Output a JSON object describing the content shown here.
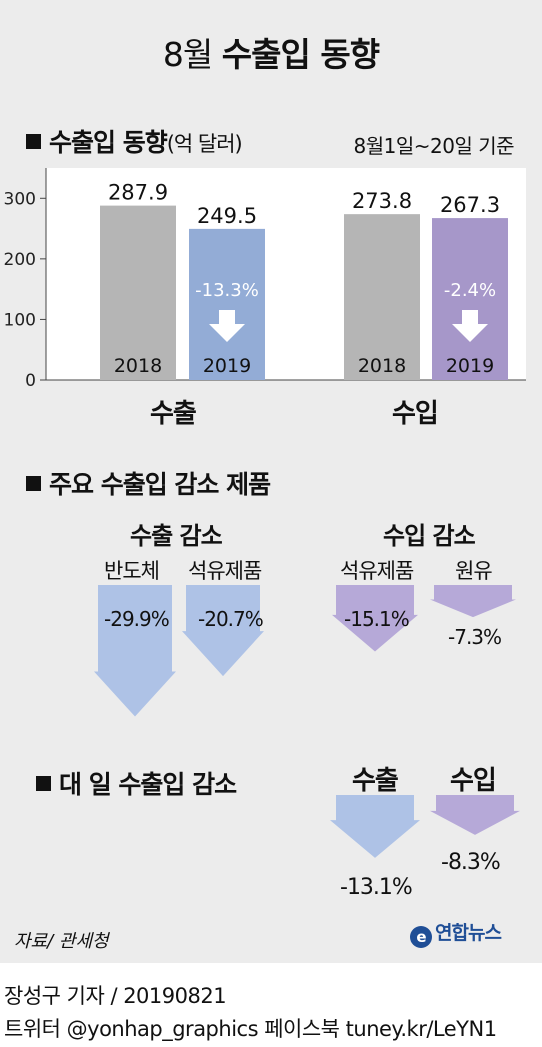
{
  "title": {
    "light": "8월",
    "bold": "수출입 동향"
  },
  "section1": {
    "heading": "수출입 동향",
    "unit": "(억 달러)",
    "period": "8월1일~20일 기준"
  },
  "section2": {
    "heading": "주요 수출입 감소 제품"
  },
  "section3": {
    "heading": "대 일 수출입 감소"
  },
  "chart_data": [
    {
      "type": "bar",
      "title": "수출입 동향",
      "ylabel": "억 달러",
      "groups": [
        "수출",
        "수입"
      ],
      "categories": [
        "2018",
        "2019"
      ],
      "series": [
        {
          "group": "수출",
          "values": [
            287.9,
            249.5
          ],
          "value_labels": [
            "287.9",
            "249.5"
          ],
          "change": "-13.3%"
        },
        {
          "group": "수입",
          "values": [
            273.8,
            267.3
          ],
          "value_labels": [
            "273.8",
            "267.3"
          ],
          "change": "-2.4%"
        }
      ],
      "yticks": [
        "0",
        "100",
        "200",
        "300"
      ],
      "ylim": [
        0,
        350
      ],
      "colors": {
        "2018": "#b5b5b5",
        "export_2019": "#93acd6",
        "import_2019": "#a697c9"
      }
    },
    {
      "type": "bar",
      "title": "주요 수출입 감소 제품",
      "groups": [
        {
          "name": "수출 감소",
          "items": [
            {
              "name": "반도체",
              "value": -29.9,
              "label": "-29.9%"
            },
            {
              "name": "석유제품",
              "value": -20.7,
              "label": "-20.7%"
            }
          ],
          "color": "#aec2e6"
        },
        {
          "name": "수입 감소",
          "items": [
            {
              "name": "석유제품",
              "value": -15.1,
              "label": "-15.1%"
            },
            {
              "name": "원유",
              "value": -7.3,
              "label": "-7.3%"
            }
          ],
          "color": "#b6a9d8"
        }
      ]
    },
    {
      "type": "bar",
      "title": "대 일 수출입 감소",
      "items": [
        {
          "name": "수출",
          "value": -13.1,
          "label": "-13.1%",
          "color": "#aec2e6"
        },
        {
          "name": "수입",
          "value": -8.3,
          "label": "-8.3%",
          "color": "#b6a9d8"
        }
      ]
    }
  ],
  "footer": {
    "source": "자료/ 관세청",
    "logo_mark": "e",
    "logo_text": "연합뉴스",
    "credit1": "장성구 기자  / 20190821",
    "credit2": "트위터 @yonhap_graphics  페이스북 tuney.kr/LeYN1"
  }
}
